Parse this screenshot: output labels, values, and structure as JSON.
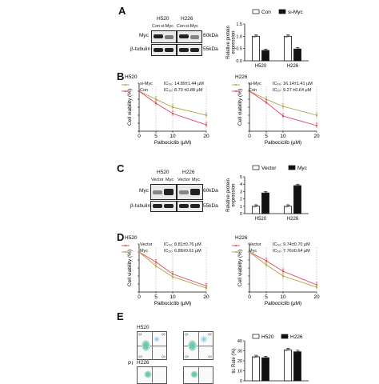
{
  "panels": {
    "A": {
      "letter": "A",
      "cell_lines": [
        "H520",
        "H226"
      ],
      "lane_labels": [
        "Con",
        "si-Myc",
        "Con",
        "si-Myc"
      ],
      "blot_rows": [
        {
          "protein": "Myc",
          "size": "60kDa"
        },
        {
          "protein": "β-tubulin",
          "size": "55kDa"
        }
      ],
      "legend": [
        "Con",
        "si-Myc"
      ]
    },
    "B": {
      "letter": "B",
      "legend_left": [
        "si-Myc",
        "Con"
      ],
      "legend_right": [
        "si-Myc",
        "Con"
      ],
      "ic50_left": [
        "IC₅₀: 14.89±1.44 μM",
        "IC₅₀: 8.70 ±0.88 μM"
      ],
      "ic50_right": [
        "IC₅₀: 16.14±1.41 μM",
        "IC₅₀: 9.27 ±0.64 μM"
      ]
    },
    "C": {
      "letter": "C",
      "cell_lines": [
        "H520",
        "H226"
      ],
      "lane_labels": [
        "Vector",
        "Myc",
        "Vector",
        "Myc"
      ],
      "blot_rows": [
        {
          "protein": "Myc",
          "size": "60kDa"
        },
        {
          "protein": "β-tubulin",
          "size": "55kDa"
        }
      ],
      "legend": [
        "Vector",
        "Myc"
      ]
    },
    "D": {
      "letter": "D",
      "legend_left": [
        "Vector",
        "Myc"
      ],
      "legend_right": [
        "Vector",
        "Myc"
      ],
      "ic50_left": [
        "IC₅₀: 8.81±0.76 μM",
        "IC₅₀: 6.88±0.61 μM"
      ],
      "ic50_right": [
        "IC₅₀: 9.74±0.70 μM",
        "IC₅₀: 7.76±0.64 μM"
      ]
    },
    "E": {
      "letter": "E",
      "flow_labels": [
        "H520",
        "H226"
      ],
      "y_label": "PI",
      "quadrant_labels": [
        "Q1",
        "Q2",
        "Q3",
        "Q4"
      ],
      "legend": [
        "H520",
        "H226"
      ],
      "bar_ylabel": "tic Rate (%)"
    }
  },
  "colors": {
    "red": "#e0405a",
    "olive": "#b0a040",
    "black": "#111111",
    "blot_bg": "#e9e9e9"
  },
  "chart_data": [
    {
      "id": "A-bar",
      "type": "bar",
      "title": "",
      "ylabel": "Relative protein expression",
      "categories": [
        "H520",
        "H226"
      ],
      "yticks": [
        "0.0",
        "0.5",
        "1.0",
        "1.5"
      ],
      "ylim": [
        0,
        1.5
      ],
      "series": [
        {
          "name": "Con",
          "values": [
            1.0,
            1.0
          ],
          "fill": "white"
        },
        {
          "name": "si-Myc",
          "values": [
            0.42,
            0.48
          ],
          "fill": "black"
        }
      ]
    },
    {
      "id": "B-left",
      "type": "line",
      "title": "H520",
      "xlabel": "Palbociclib (μM)",
      "ylabel": "Cell viability (%)",
      "x": [
        0,
        5,
        10,
        20
      ],
      "xticks": [
        "0",
        "5",
        "10",
        "20"
      ],
      "yticks": [
        "0",
        "20",
        "40",
        "60",
        "80",
        "100",
        "120"
      ],
      "ylim": [
        0,
        120
      ],
      "series": [
        {
          "name": "si-Myc",
          "color": "olive",
          "values": [
            100,
            80,
            60,
            40
          ]
        },
        {
          "name": "Con",
          "color": "red",
          "values": [
            100,
            70,
            44,
            16
          ]
        }
      ]
    },
    {
      "id": "B-right",
      "type": "line",
      "title": "H226",
      "xlabel": "Palbociclib (μM)",
      "ylabel": "Cell viability (%)",
      "x": [
        0,
        5,
        10,
        20
      ],
      "xticks": [
        "0",
        "5",
        "10",
        "20"
      ],
      "yticks": [
        "0",
        "20",
        "40",
        "60",
        "80",
        "100",
        "120"
      ],
      "ylim": [
        0,
        120
      ],
      "series": [
        {
          "name": "si-Myc",
          "color": "olive",
          "values": [
            100,
            80,
            62,
            40
          ]
        },
        {
          "name": "Con",
          "color": "red",
          "values": [
            100,
            72,
            38,
            14
          ]
        }
      ]
    },
    {
      "id": "C-bar",
      "type": "bar",
      "title": "",
      "ylabel": "Relative protein expression",
      "categories": [
        "H520",
        "H226"
      ],
      "yticks": [
        "0",
        "1",
        "2",
        "3",
        "4",
        "5"
      ],
      "ylim": [
        0,
        5
      ],
      "series": [
        {
          "name": "Vector",
          "values": [
            1.0,
            1.0
          ],
          "fill": "white"
        },
        {
          "name": "Myc",
          "values": [
            2.8,
            3.8
          ],
          "fill": "black"
        }
      ]
    },
    {
      "id": "D-left",
      "type": "line",
      "title": "H520",
      "xlabel": "Palbociclib (μM)",
      "ylabel": "Cell viability (%)",
      "x": [
        0,
        5,
        10,
        20
      ],
      "xticks": [
        "0",
        "5",
        "10",
        "20"
      ],
      "yticks": [
        "0",
        "20",
        "40",
        "60",
        "80",
        "100",
        "120"
      ],
      "ylim": [
        0,
        120
      ],
      "series": [
        {
          "name": "Vector",
          "color": "red",
          "values": [
            100,
            75,
            45,
            15
          ]
        },
        {
          "name": "Myc",
          "color": "olive",
          "values": [
            100,
            65,
            38,
            10
          ]
        }
      ]
    },
    {
      "id": "D-right",
      "type": "line",
      "title": "H226",
      "xlabel": "Palbociclib (μM)",
      "ylabel": "Cell viability (%)",
      "x": [
        0,
        5,
        10,
        20
      ],
      "xticks": [
        "0",
        "5",
        "10",
        "20"
      ],
      "yticks": [
        "0",
        "20",
        "40",
        "60",
        "80",
        "100",
        "120"
      ],
      "ylim": [
        0,
        120
      ],
      "series": [
        {
          "name": "Vector",
          "color": "red",
          "values": [
            100,
            78,
            52,
            18
          ]
        },
        {
          "name": "Myc",
          "color": "olive",
          "values": [
            100,
            68,
            40,
            12
          ]
        }
      ]
    },
    {
      "id": "E-bar",
      "type": "bar",
      "title": "",
      "ylabel": "tic Rate (%)",
      "categories": [
        "",
        ""
      ],
      "yticks": [
        "0",
        "10",
        "20",
        "30",
        "40"
      ],
      "ylim": [
        0,
        40
      ],
      "series": [
        {
          "name": "H520",
          "values": [
            24,
            31
          ],
          "fill": "white"
        },
        {
          "name": "H226",
          "values": [
            23,
            29
          ],
          "fill": "black"
        }
      ]
    }
  ]
}
